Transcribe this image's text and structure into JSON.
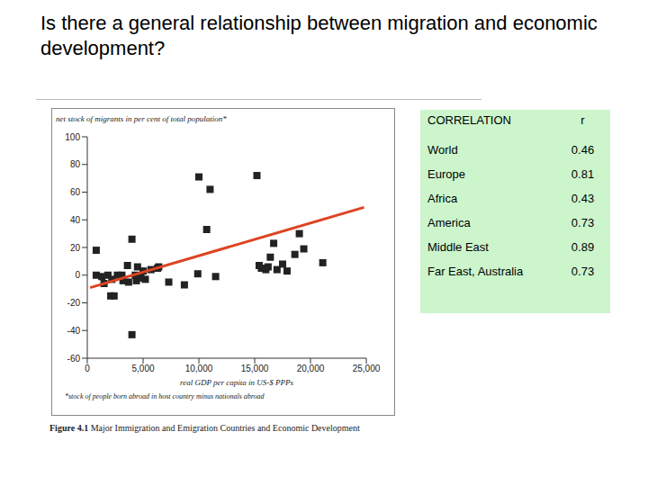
{
  "title": "Is there a general relationship between migration and economic development?",
  "chart_data": {
    "type": "scatter",
    "y_label": "net stock of migrants in per cent of total population*",
    "x_label": "real GDP per capita in US-$ PPPs",
    "footnote": "*stock of people born abroad in host country minus nationals abroad",
    "figure_label": "Figure 4.1",
    "caption": "Major Immigration and Emigration Countries and Economic Development",
    "xlim": [
      0,
      25000
    ],
    "xticks": [
      0,
      {
        "value": 5000,
        "label": "5,000"
      },
      {
        "value": 10000,
        "label": "10,000"
      },
      {
        "value": 15000,
        "label": "15,000"
      },
      {
        "value": 20000,
        "label": "20,000"
      },
      {
        "value": 25000,
        "label": "25,000"
      }
    ],
    "ylim": [
      -60,
      100
    ],
    "yticks": [
      -60,
      -40,
      -20,
      0,
      20,
      40,
      60,
      80,
      100
    ],
    "grid": false,
    "series": [
      {
        "type": "scatter",
        "color": "#222222",
        "marker": "square",
        "x": [
          800,
          800,
          1300,
          1500,
          1850,
          2100,
          2400,
          2200,
          2700,
          3100,
          3200,
          3600,
          3700,
          4000,
          4000,
          4300,
          4400,
          4500,
          4800,
          5000,
          5200,
          5700,
          6300,
          6400,
          7300,
          8700,
          9900,
          10000,
          11000,
          10700,
          11500,
          15200,
          15400,
          15600,
          16000,
          16200,
          16400,
          16700,
          17000,
          17500,
          17900,
          18600,
          19000,
          19400,
          21100
        ],
        "values": [
          18,
          0,
          -1,
          -6,
          0,
          -15,
          -15,
          -3,
          0,
          0,
          -4,
          7,
          -5,
          26,
          -43,
          0,
          -4,
          6,
          -2,
          3,
          -3,
          4,
          5,
          6,
          -5,
          -7,
          1,
          71,
          62,
          33,
          -1,
          72,
          7,
          5,
          4,
          6,
          13,
          23,
          4,
          8,
          3,
          15,
          30,
          19,
          9
        ]
      },
      {
        "type": "line",
        "color": "#dd4422",
        "x": [
          250,
          24800
        ],
        "values": [
          -9,
          49
        ]
      }
    ]
  },
  "table": {
    "header": [
      "CORRELATION",
      "r"
    ],
    "rows": [
      [
        "World",
        0.46
      ],
      [
        "Europe",
        0.81
      ],
      [
        "Africa",
        0.43
      ],
      [
        "America",
        0.73
      ],
      [
        "Middle East",
        0.89
      ],
      [
        "Far East, Australia",
        0.73
      ]
    ]
  }
}
